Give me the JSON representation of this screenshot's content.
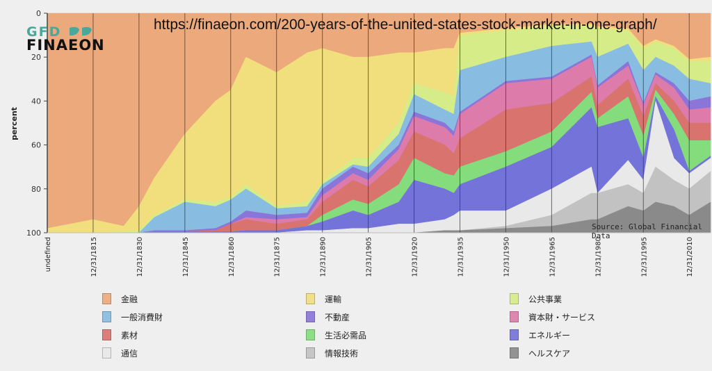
{
  "overlay": {
    "url": "https://finaeon.com/200-years-of-the-united-states-stock-market-in-one-graph/",
    "source": "Source: Global Financial Data",
    "logo_top": "GFD",
    "logo_bottom": "FINAEON"
  },
  "chart_data": {
    "type": "area",
    "stacked": true,
    "note": "values are cumulative stacked percent measured from the bottom of the chart (order bottom to top)",
    "ylabel": "percent",
    "ylim": [
      0,
      100
    ],
    "y_axis_inverted": true,
    "yticks": [
      "0",
      "20",
      "40",
      "60",
      "80",
      "100"
    ],
    "xlim": [
      1800,
      2017
    ],
    "xticks": [
      {
        "year": 1800,
        "label": "undefined"
      },
      {
        "year": 1815,
        "label": "12/31/1815"
      },
      {
        "year": 1830,
        "label": "12/31/1830"
      },
      {
        "year": 1845,
        "label": "12/31/1845"
      },
      {
        "year": 1860,
        "label": "12/31/1860"
      },
      {
        "year": 1875,
        "label": "12/31/1875"
      },
      {
        "year": 1890,
        "label": "12/31/1890"
      },
      {
        "year": 1905,
        "label": "12/31/1905"
      },
      {
        "year": 1920,
        "label": "12/31/1920"
      },
      {
        "year": 1935,
        "label": "12/31/1935"
      },
      {
        "year": 1950,
        "label": "12/31/1950"
      },
      {
        "year": 1965,
        "label": "12/31/1965"
      },
      {
        "year": 1980,
        "label": "12/31/1980"
      },
      {
        "year": 1995,
        "label": "12/31/1995"
      },
      {
        "year": 2010,
        "label": "12/31/2010"
      }
    ],
    "grid": "vertical",
    "legend_position": "bottom",
    "x": [
      1800,
      1815,
      1825,
      1830,
      1835,
      1845,
      1855,
      1860,
      1865,
      1875,
      1885,
      1890,
      1900,
      1905,
      1915,
      1920,
      1930,
      1933,
      1935,
      1950,
      1965,
      1978,
      1980,
      1990,
      1995,
      1999,
      2005,
      2010,
      2017
    ],
    "series": [
      {
        "name": "ヘルスケア",
        "color": "#8a8a8a",
        "cumulative": [
          0,
          0,
          0,
          0,
          0,
          0,
          0,
          0,
          0,
          0,
          0,
          0,
          0,
          0,
          0,
          0,
          1,
          1,
          1,
          2,
          3,
          6,
          6,
          12,
          10,
          14,
          12,
          8,
          14
        ]
      },
      {
        "name": "情報技術",
        "color": "#c2c2c2",
        "cumulative": [
          0,
          0,
          0,
          0,
          0,
          0,
          0,
          0,
          0,
          0,
          0,
          0,
          0,
          0,
          0,
          0,
          1,
          1,
          1,
          3,
          8,
          18,
          18,
          22,
          18,
          30,
          24,
          20,
          28
        ]
      },
      {
        "name": "通信",
        "color": "#e9e9e9",
        "cumulative": [
          0,
          0,
          0,
          0,
          0,
          0,
          0,
          0,
          0,
          0,
          1,
          1,
          2,
          2,
          4,
          4,
          6,
          8,
          10,
          10,
          20,
          30,
          18,
          33,
          24,
          60,
          34,
          27,
          34
        ]
      },
      {
        "name": "エネルギー",
        "color": "#7373d9",
        "cumulative": [
          0,
          0,
          0,
          0,
          0.5,
          0.5,
          0.5,
          0.5,
          1,
          1,
          3,
          5,
          10,
          8,
          14,
          24,
          20,
          18,
          22,
          30,
          39,
          57,
          48,
          52,
          34,
          62,
          47,
          28,
          35
        ]
      },
      {
        "name": "生活必需品",
        "color": "#84dc7c",
        "cumulative": [
          0,
          0,
          0,
          0,
          0.5,
          0.5,
          0.5,
          0.5,
          1,
          1,
          3,
          8,
          15,
          13,
          22,
          34,
          27,
          26,
          30,
          37,
          46,
          64,
          52,
          62,
          44,
          65,
          54,
          42,
          42
        ]
      },
      {
        "name": "素材",
        "color": "#d8736d",
        "cumulative": [
          0,
          0,
          0,
          0,
          0.5,
          0.5,
          1,
          4,
          6,
          4,
          6,
          14,
          24,
          21,
          33,
          46,
          40,
          36,
          43,
          56,
          59,
          71,
          58,
          70,
          53,
          68,
          60,
          50,
          50
        ]
      },
      {
        "name": "資本財・サービス",
        "color": "#dd7cab",
        "cumulative": [
          0,
          0,
          0,
          0,
          0.5,
          0.5,
          1,
          4,
          7,
          6,
          7,
          17,
          27,
          24,
          38,
          53,
          48,
          44,
          54,
          68,
          70,
          80,
          66,
          76,
          58,
          72,
          66,
          56,
          57
        ]
      },
      {
        "name": "不動産",
        "color": "#8b75d9",
        "cumulative": [
          0,
          0,
          0,
          0,
          1,
          1,
          2,
          5,
          10,
          8,
          9,
          20,
          30,
          27,
          40,
          55,
          50,
          46,
          55,
          69,
          71,
          81,
          67,
          78,
          59,
          73,
          68,
          60,
          62
        ]
      },
      {
        "name": "一般消費財",
        "color": "#88bce0",
        "cumulative": [
          0,
          0,
          0,
          0,
          7,
          14,
          12,
          15,
          20,
          11,
          12,
          22,
          31,
          30,
          45,
          63,
          56,
          54,
          74,
          80,
          85,
          87,
          80,
          86,
          74,
          80,
          76,
          70,
          68
        ]
      },
      {
        "name": "公共事業",
        "color": "#d6ec88",
        "cumulative": [
          0,
          0,
          0.5,
          1,
          8,
          15,
          14,
          16,
          22,
          12,
          14,
          23,
          34,
          34,
          50,
          68,
          64,
          62,
          90,
          92,
          94,
          94,
          93,
          92,
          84,
          87,
          84,
          78,
          78
        ]
      },
      {
        "name": "運輸",
        "color": "#f1df7e",
        "cumulative": [
          2,
          6,
          3,
          12,
          25,
          45,
          60,
          65,
          80,
          73,
          82,
          84,
          80,
          80,
          82,
          82,
          84,
          84,
          91,
          93,
          95,
          95,
          94,
          93,
          85,
          88,
          85,
          79,
          80
        ]
      },
      {
        "name": "金融",
        "color": "#ecaa7c",
        "cumulative": [
          100,
          100,
          100,
          100,
          100,
          100,
          100,
          100,
          100,
          100,
          100,
          100,
          100,
          100,
          100,
          100,
          100,
          100,
          100,
          100,
          100,
          100,
          100,
          100,
          100,
          100,
          100,
          100,
          100
        ]
      }
    ],
    "legend": [
      "金融",
      "運輸",
      "公共事業",
      "一般消費財",
      "不動産",
      "資本財・サービス",
      "素材",
      "生活必需品",
      "エネルギー",
      "通信",
      "情報技術",
      "ヘルスケア"
    ]
  }
}
